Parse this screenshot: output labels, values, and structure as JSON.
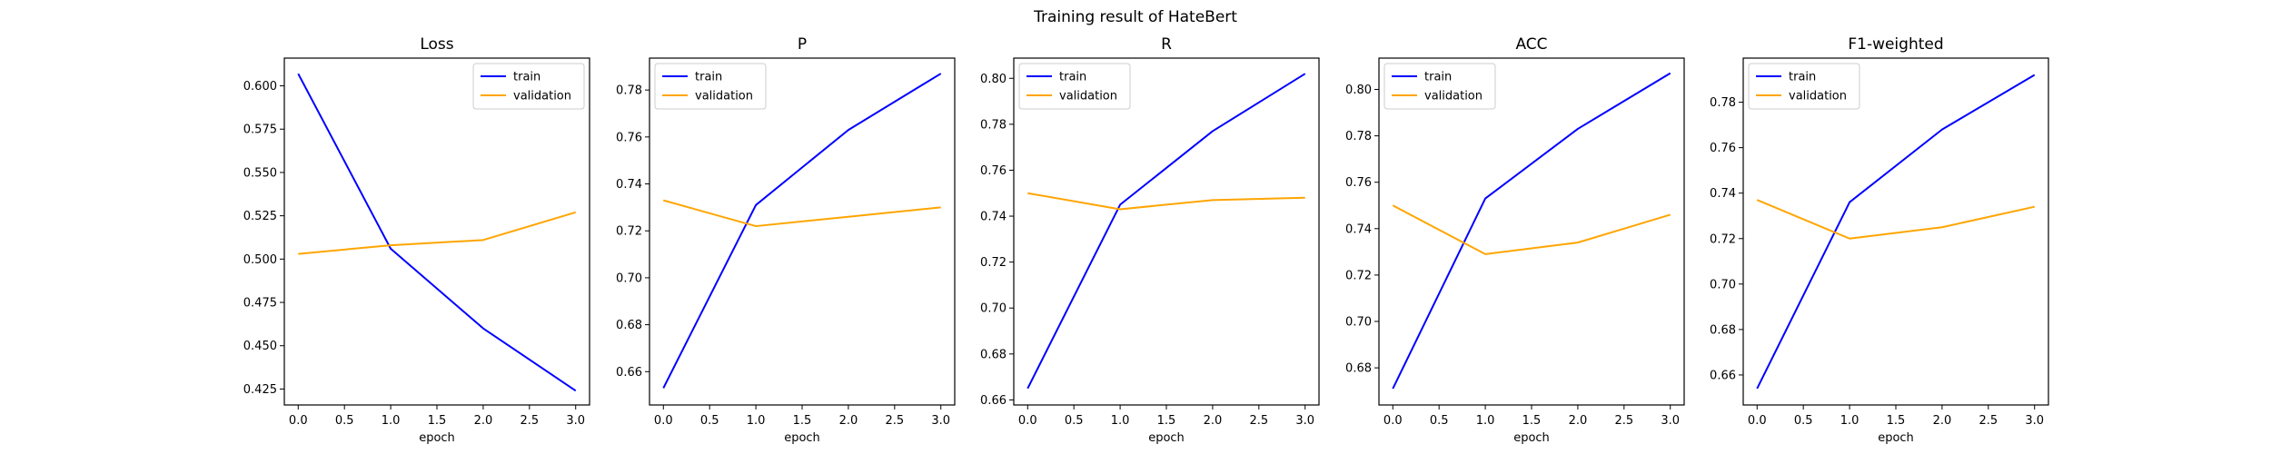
{
  "figure": {
    "suptitle": "Training result of HateBert"
  },
  "chart_data": [
    {
      "type": "line",
      "title": "Loss",
      "xlabel": "epoch",
      "ylabel": "",
      "x": [
        0,
        1,
        2,
        3
      ],
      "xlim": [
        -0.15,
        3.15
      ],
      "ylim": [
        0.4158,
        0.616
      ],
      "xticks": [
        0.0,
        0.5,
        1.0,
        1.5,
        2.0,
        2.5,
        3.0
      ],
      "xtick_labels": [
        "0.0",
        "0.5",
        "1.0",
        "1.5",
        "2.0",
        "2.5",
        "3.0"
      ],
      "yticks": [
        0.425,
        0.45,
        0.475,
        0.5,
        0.525,
        0.55,
        0.575,
        0.6
      ],
      "ytick_labels": [
        "0.425",
        "0.450",
        "0.475",
        "0.500",
        "0.525",
        "0.550",
        "0.575",
        "0.600"
      ],
      "legend": "upper-right",
      "grid": false,
      "series": [
        {
          "name": "train",
          "color": "#0000ff",
          "values": [
            0.607,
            0.506,
            0.46,
            0.424
          ]
        },
        {
          "name": "validation",
          "color": "#ffa500",
          "values": [
            0.503,
            0.508,
            0.511,
            0.527
          ]
        }
      ]
    },
    {
      "type": "line",
      "title": "P",
      "xlabel": "epoch",
      "ylabel": "",
      "x": [
        0,
        1,
        2,
        3
      ],
      "xlim": [
        -0.15,
        3.15
      ],
      "ylim": [
        0.6458,
        0.7936
      ],
      "xticks": [
        0.0,
        0.5,
        1.0,
        1.5,
        2.0,
        2.5,
        3.0
      ],
      "xtick_labels": [
        "0.0",
        "0.5",
        "1.0",
        "1.5",
        "2.0",
        "2.5",
        "3.0"
      ],
      "yticks": [
        0.66,
        0.68,
        0.7,
        0.72,
        0.74,
        0.76,
        0.78
      ],
      "ytick_labels": [
        "0.66",
        "0.68",
        "0.70",
        "0.72",
        "0.74",
        "0.76",
        "0.78"
      ],
      "legend": "upper-left",
      "grid": false,
      "series": [
        {
          "name": "train",
          "color": "#0000ff",
          "values": [
            0.653,
            0.731,
            0.763,
            0.787
          ]
        },
        {
          "name": "validation",
          "color": "#ffa500",
          "values": [
            0.733,
            0.722,
            0.726,
            0.73
          ]
        }
      ]
    },
    {
      "type": "line",
      "title": "R",
      "xlabel": "epoch",
      "ylabel": "",
      "x": [
        0,
        1,
        2,
        3
      ],
      "xlim": [
        -0.15,
        3.15
      ],
      "ylim": [
        0.6578,
        0.8088
      ],
      "xticks": [
        0.0,
        0.5,
        1.0,
        1.5,
        2.0,
        2.5,
        3.0
      ],
      "xtick_labels": [
        "0.0",
        "0.5",
        "1.0",
        "1.5",
        "2.0",
        "2.5",
        "3.0"
      ],
      "yticks": [
        0.66,
        0.68,
        0.7,
        0.72,
        0.74,
        0.76,
        0.78,
        0.8
      ],
      "ytick_labels": [
        "0.66",
        "0.68",
        "0.70",
        "0.72",
        "0.74",
        "0.76",
        "0.78",
        "0.80"
      ],
      "legend": "upper-left",
      "grid": false,
      "series": [
        {
          "name": "train",
          "color": "#0000ff",
          "values": [
            0.665,
            0.745,
            0.777,
            0.802
          ]
        },
        {
          "name": "validation",
          "color": "#ffa500",
          "values": [
            0.75,
            0.743,
            0.747,
            0.748
          ]
        }
      ]
    },
    {
      "type": "line",
      "title": "ACC",
      "xlabel": "epoch",
      "ylabel": "",
      "x": [
        0,
        1,
        2,
        3
      ],
      "xlim": [
        -0.15,
        3.15
      ],
      "ylim": [
        0.664,
        0.8135
      ],
      "xticks": [
        0.0,
        0.5,
        1.0,
        1.5,
        2.0,
        2.5,
        3.0
      ],
      "xtick_labels": [
        "0.0",
        "0.5",
        "1.0",
        "1.5",
        "2.0",
        "2.5",
        "3.0"
      ],
      "yticks": [
        0.68,
        0.7,
        0.72,
        0.74,
        0.76,
        0.78,
        0.8
      ],
      "ytick_labels": [
        "0.68",
        "0.70",
        "0.72",
        "0.74",
        "0.76",
        "0.78",
        "0.80"
      ],
      "legend": "upper-left",
      "grid": false,
      "series": [
        {
          "name": "train",
          "color": "#0000ff",
          "values": [
            0.671,
            0.753,
            0.783,
            0.807
          ]
        },
        {
          "name": "validation",
          "color": "#ffa500",
          "values": [
            0.75,
            0.729,
            0.734,
            0.746
          ]
        }
      ]
    },
    {
      "type": "line",
      "title": "F1-weighted",
      "xlabel": "epoch",
      "ylabel": "",
      "x": [
        0,
        1,
        2,
        3
      ],
      "xlim": [
        -0.15,
        3.15
      ],
      "ylim": [
        0.6468,
        0.7994
      ],
      "xticks": [
        0.0,
        0.5,
        1.0,
        1.5,
        2.0,
        2.5,
        3.0
      ],
      "xtick_labels": [
        "0.0",
        "0.5",
        "1.0",
        "1.5",
        "2.0",
        "2.5",
        "3.0"
      ],
      "yticks": [
        0.66,
        0.68,
        0.7,
        0.72,
        0.74,
        0.76,
        0.78
      ],
      "ytick_labels": [
        "0.66",
        "0.68",
        "0.70",
        "0.72",
        "0.74",
        "0.76",
        "0.78"
      ],
      "legend": "upper-left",
      "grid": false,
      "series": [
        {
          "name": "train",
          "color": "#0000ff",
          "values": [
            0.654,
            0.736,
            0.768,
            0.792
          ]
        },
        {
          "name": "validation",
          "color": "#ffa500",
          "values": [
            0.737,
            0.72,
            0.725,
            0.734
          ]
        }
      ]
    }
  ]
}
